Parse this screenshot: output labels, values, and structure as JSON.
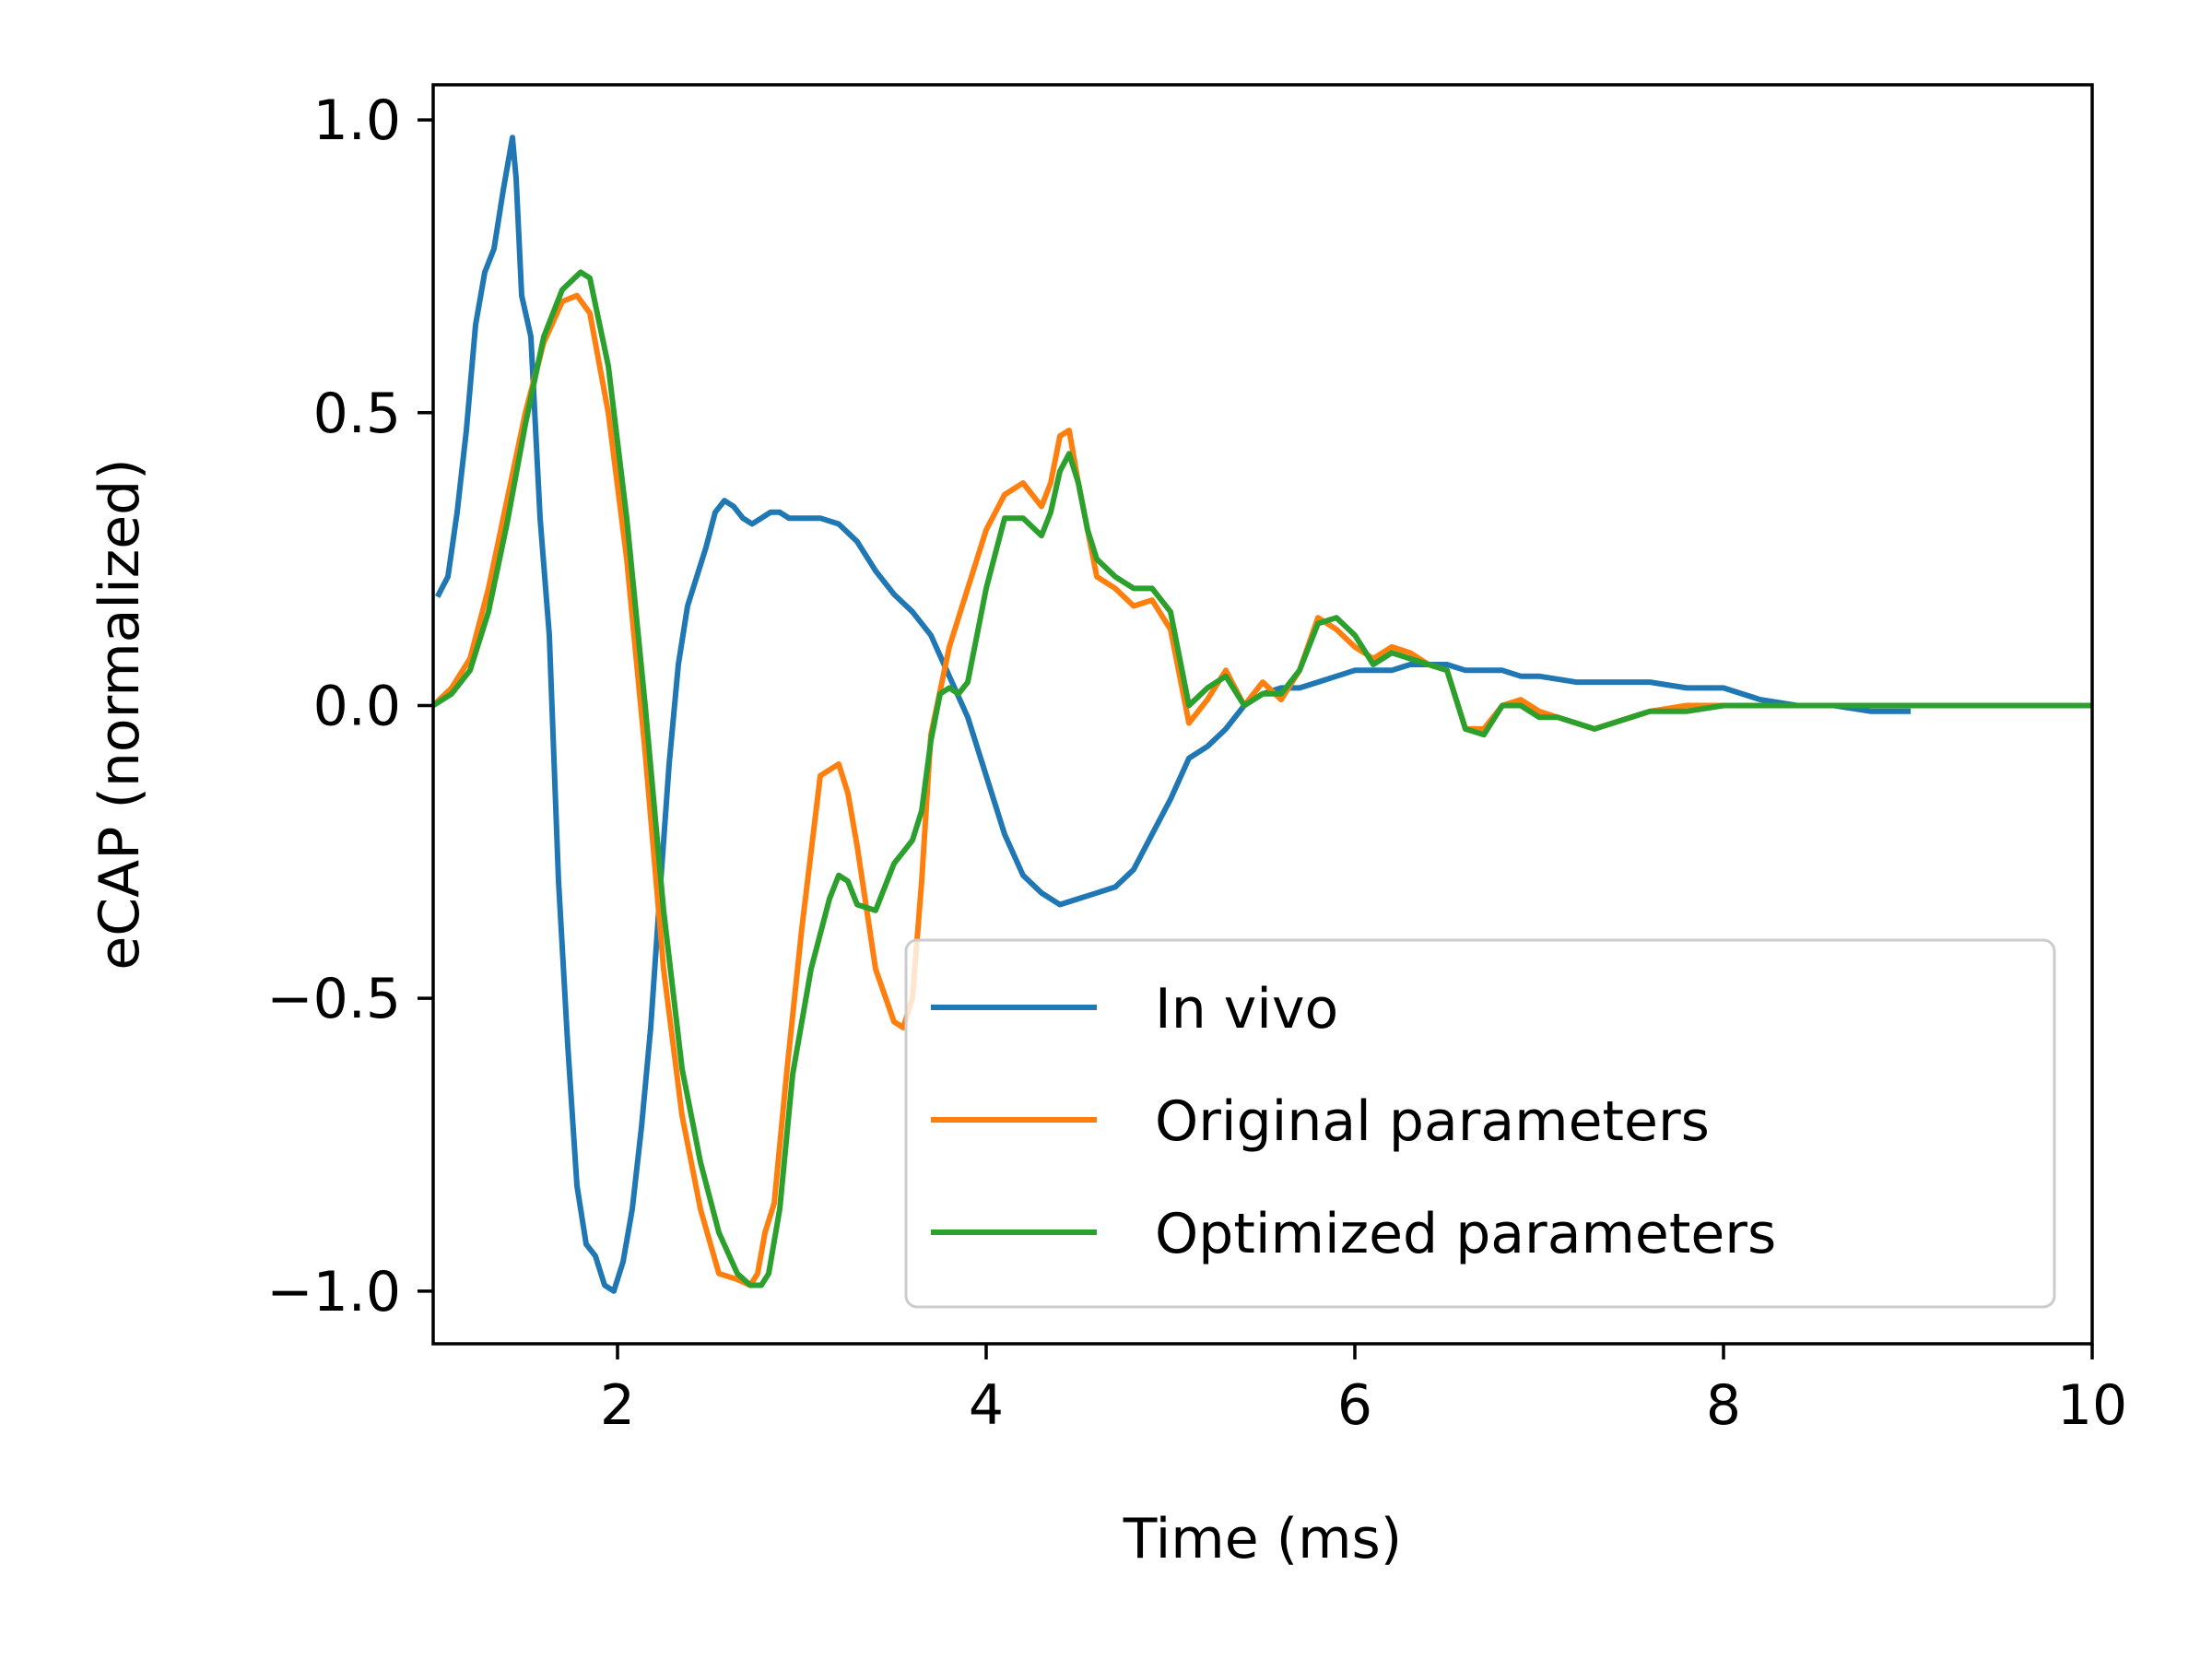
{
  "chart_data": {
    "type": "line",
    "xlabel": "Time (ms)",
    "ylabel": "eCAP (normalized)",
    "xlim": [
      1,
      10
    ],
    "ylim": [
      -1.09,
      1.06
    ],
    "xticks": [
      2,
      4,
      6,
      8,
      10
    ],
    "yticks": [
      1.0,
      0.5,
      0.0,
      -0.5,
      -1.0
    ],
    "xtick_labels": [
      "2",
      "4",
      "6",
      "8",
      "10"
    ],
    "ytick_labels": [
      "1.0",
      "0.5",
      "0.0",
      "−0.5",
      "−1.0"
    ],
    "grid": false,
    "legend_position": "lower right",
    "series": [
      {
        "name": "In vivo",
        "color": "#1f77b4",
        "x": [
          1.03,
          1.08,
          1.13,
          1.18,
          1.23,
          1.28,
          1.33,
          1.38,
          1.43,
          1.45,
          1.48,
          1.53,
          1.58,
          1.63,
          1.68,
          1.73,
          1.78,
          1.83,
          1.88,
          1.93,
          1.98,
          2.03,
          2.08,
          2.13,
          2.18,
          2.23,
          2.28,
          2.33,
          2.38,
          2.43,
          2.48,
          2.53,
          2.58,
          2.63,
          2.68,
          2.73,
          2.78,
          2.83,
          2.88,
          2.93,
          2.98,
          3.03,
          3.1,
          3.2,
          3.3,
          3.4,
          3.5,
          3.6,
          3.7,
          3.8,
          3.9,
          4.0,
          4.1,
          4.2,
          4.3,
          4.4,
          4.5,
          4.6,
          4.7,
          4.8,
          4.9,
          5.0,
          5.1,
          5.2,
          5.3,
          5.4,
          5.5,
          5.6,
          5.7,
          5.8,
          5.9,
          6.0,
          6.1,
          6.2,
          6.3,
          6.4,
          6.5,
          6.6,
          6.7,
          6.8,
          6.9,
          7.0,
          7.2,
          7.4,
          7.6,
          7.8,
          8.0,
          8.2,
          8.4,
          8.6,
          8.8,
          9.0
        ],
        "y": [
          0.19,
          0.22,
          0.33,
          0.47,
          0.65,
          0.74,
          0.78,
          0.88,
          0.97,
          0.9,
          0.7,
          0.63,
          0.32,
          0.12,
          -0.3,
          -0.58,
          -0.82,
          -0.92,
          -0.94,
          -0.99,
          -1.0,
          -0.95,
          -0.86,
          -0.72,
          -0.55,
          -0.32,
          -0.1,
          0.07,
          0.17,
          0.22,
          0.27,
          0.33,
          0.35,
          0.34,
          0.32,
          0.31,
          0.32,
          0.33,
          0.33,
          0.32,
          0.32,
          0.32,
          0.32,
          0.31,
          0.28,
          0.23,
          0.19,
          0.16,
          0.12,
          0.05,
          -0.02,
          -0.12,
          -0.22,
          -0.29,
          -0.32,
          -0.34,
          -0.33,
          -0.32,
          -0.31,
          -0.28,
          -0.22,
          -0.16,
          -0.09,
          -0.07,
          -0.04,
          0.0,
          0.02,
          0.03,
          0.03,
          0.04,
          0.05,
          0.06,
          0.06,
          0.06,
          0.07,
          0.07,
          0.07,
          0.06,
          0.06,
          0.06,
          0.05,
          0.05,
          0.04,
          0.04,
          0.04,
          0.03,
          0.03,
          0.01,
          0.0,
          0.0,
          -0.01,
          -0.01
        ]
      },
      {
        "name": "Original parameters",
        "color": "#ff7f0e",
        "x": [
          1.0,
          1.1,
          1.2,
          1.3,
          1.4,
          1.5,
          1.6,
          1.7,
          1.78,
          1.85,
          1.95,
          2.05,
          2.15,
          2.25,
          2.35,
          2.45,
          2.55,
          2.65,
          2.72,
          2.76,
          2.8,
          2.85,
          2.92,
          3.0,
          3.1,
          3.2,
          3.25,
          3.3,
          3.4,
          3.5,
          3.55,
          3.6,
          3.65,
          3.7,
          3.8,
          3.9,
          4.0,
          4.1,
          4.2,
          4.3,
          4.35,
          4.4,
          4.45,
          4.5,
          4.55,
          4.6,
          4.7,
          4.8,
          4.9,
          5.0,
          5.1,
          5.2,
          5.3,
          5.4,
          5.5,
          5.6,
          5.7,
          5.8,
          5.9,
          6.0,
          6.1,
          6.2,
          6.3,
          6.4,
          6.5,
          6.6,
          6.7,
          6.8,
          6.9,
          7.0,
          7.1,
          7.2,
          7.3,
          7.4,
          7.6,
          7.8,
          8.0,
          8.5,
          9.0,
          9.5,
          10.0
        ],
        "y": [
          0.0,
          0.03,
          0.08,
          0.2,
          0.35,
          0.5,
          0.62,
          0.69,
          0.7,
          0.67,
          0.5,
          0.25,
          -0.08,
          -0.45,
          -0.7,
          -0.86,
          -0.97,
          -0.98,
          -0.99,
          -0.97,
          -0.9,
          -0.85,
          -0.62,
          -0.38,
          -0.12,
          -0.1,
          -0.15,
          -0.24,
          -0.45,
          -0.54,
          -0.55,
          -0.5,
          -0.3,
          -0.05,
          0.1,
          0.2,
          0.3,
          0.36,
          0.38,
          0.34,
          0.38,
          0.46,
          0.47,
          0.38,
          0.3,
          0.22,
          0.2,
          0.17,
          0.18,
          0.13,
          -0.03,
          0.01,
          0.06,
          0.0,
          0.04,
          0.01,
          0.06,
          0.15,
          0.13,
          0.1,
          0.08,
          0.1,
          0.09,
          0.07,
          0.06,
          -0.04,
          -0.04,
          0.0,
          0.01,
          -0.01,
          -0.02,
          -0.03,
          -0.04,
          -0.03,
          -0.01,
          0.0,
          0.0,
          0.0,
          0.0,
          0.0,
          0.0
        ]
      },
      {
        "name": "Optimized parameters",
        "color": "#2ca02c",
        "x": [
          1.0,
          1.1,
          1.2,
          1.3,
          1.4,
          1.5,
          1.6,
          1.7,
          1.8,
          1.85,
          1.95,
          2.05,
          2.15,
          2.25,
          2.35,
          2.45,
          2.55,
          2.65,
          2.72,
          2.78,
          2.82,
          2.88,
          2.95,
          3.05,
          3.15,
          3.2,
          3.25,
          3.3,
          3.4,
          3.5,
          3.55,
          3.6,
          3.65,
          3.7,
          3.75,
          3.8,
          3.85,
          3.9,
          4.0,
          4.1,
          4.2,
          4.3,
          4.35,
          4.4,
          4.45,
          4.5,
          4.55,
          4.6,
          4.7,
          4.8,
          4.9,
          5.0,
          5.1,
          5.2,
          5.3,
          5.4,
          5.5,
          5.6,
          5.7,
          5.8,
          5.9,
          6.0,
          6.1,
          6.2,
          6.3,
          6.4,
          6.5,
          6.6,
          6.7,
          6.8,
          6.9,
          7.0,
          7.1,
          7.2,
          7.3,
          7.4,
          7.6,
          7.8,
          8.0,
          8.5,
          9.0,
          9.5,
          10.0
        ],
        "y": [
          0.0,
          0.02,
          0.06,
          0.16,
          0.31,
          0.48,
          0.63,
          0.71,
          0.74,
          0.73,
          0.58,
          0.32,
          0.0,
          -0.35,
          -0.62,
          -0.78,
          -0.9,
          -0.97,
          -0.99,
          -0.99,
          -0.97,
          -0.86,
          -0.63,
          -0.45,
          -0.33,
          -0.29,
          -0.3,
          -0.34,
          -0.35,
          -0.27,
          -0.25,
          -0.23,
          -0.18,
          -0.06,
          0.02,
          0.03,
          0.02,
          0.04,
          0.2,
          0.32,
          0.32,
          0.29,
          0.33,
          0.4,
          0.43,
          0.38,
          0.3,
          0.25,
          0.22,
          0.2,
          0.2,
          0.16,
          0.0,
          0.03,
          0.05,
          0.0,
          0.02,
          0.02,
          0.06,
          0.14,
          0.15,
          0.12,
          0.07,
          0.09,
          0.08,
          0.07,
          0.06,
          -0.04,
          -0.05,
          0.0,
          0.0,
          -0.02,
          -0.02,
          -0.03,
          -0.04,
          -0.03,
          -0.01,
          -0.01,
          0.0,
          0.0,
          0.0,
          0.0,
          0.0
        ]
      }
    ]
  }
}
